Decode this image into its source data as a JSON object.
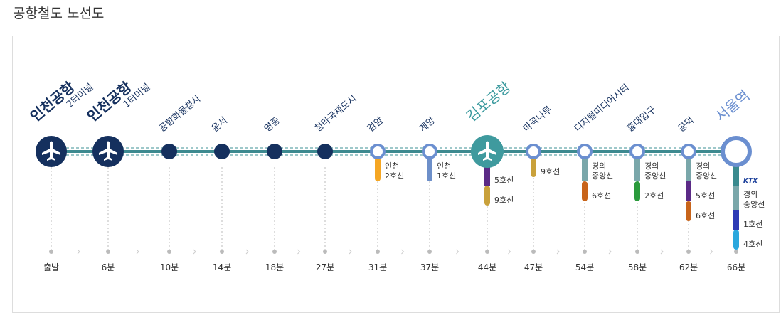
{
  "header": {
    "title": "공항철도 노선도"
  },
  "stations": [
    {
      "name": "인천공항",
      "sub": "2터미널",
      "time": "출발",
      "marker": "airport",
      "transfers": []
    },
    {
      "name": "인천공항",
      "sub": "1터미널",
      "time": "6분",
      "marker": "airport",
      "transfers": []
    },
    {
      "name": "공항화물청사",
      "time": "10분",
      "marker": "stop",
      "transfers": []
    },
    {
      "name": "운서",
      "time": "14분",
      "marker": "stop",
      "transfers": []
    },
    {
      "name": "영종",
      "time": "18분",
      "marker": "stop",
      "transfers": []
    },
    {
      "name": "청라국제도시",
      "time": "27분",
      "marker": "stop",
      "transfers": []
    },
    {
      "name": "검암",
      "time": "31분",
      "marker": "transfer",
      "transfers": [
        {
          "label": [
            "인천",
            "2호선"
          ],
          "color": "#f5a623"
        }
      ]
    },
    {
      "name": "계양",
      "time": "37분",
      "marker": "transfer",
      "transfers": [
        {
          "label": [
            "인천",
            "1호선"
          ],
          "color": "#6d8fc9"
        }
      ]
    },
    {
      "name": "김포공항",
      "time": "44분",
      "marker": "hub",
      "transfers": [
        {
          "label": [
            "5호선"
          ],
          "color": "#5b2a86"
        },
        {
          "label": [
            "9호선"
          ],
          "color": "#c9a13b"
        }
      ]
    },
    {
      "name": "마곡나루",
      "time": "47분",
      "marker": "transfer",
      "transfers": [
        {
          "label": [
            "9호선"
          ],
          "color": "#c9a13b"
        }
      ]
    },
    {
      "name": "디지털미디어시티",
      "time": "54분",
      "marker": "transfer",
      "transfers": [
        {
          "label": [
            "경의",
            "중앙선"
          ],
          "color": "#7aa7aa"
        },
        {
          "label": [
            "6호선"
          ],
          "color": "#c8641a"
        }
      ]
    },
    {
      "name": "홍대입구",
      "time": "58분",
      "marker": "transfer",
      "transfers": [
        {
          "label": [
            "경의",
            "중앙선"
          ],
          "color": "#7aa7aa"
        },
        {
          "label": [
            "2호선"
          ],
          "color": "#2a9a3c"
        }
      ]
    },
    {
      "name": "공덕",
      "time": "62분",
      "marker": "transfer",
      "transfers": [
        {
          "label": [
            "경의",
            "중앙선"
          ],
          "color": "#7aa7aa"
        },
        {
          "label": [
            "5호선"
          ],
          "color": "#5b2a86"
        },
        {
          "label": [
            "6호선"
          ],
          "color": "#c8641a"
        }
      ]
    },
    {
      "name": "서울역",
      "time": "66분",
      "marker": "terminal",
      "transfers": [
        {
          "label": [
            "KTX"
          ],
          "color": "#3a8a8e"
        },
        {
          "label": [
            "경의",
            "중앙선"
          ],
          "color": "#7aa7aa"
        },
        {
          "label": [
            "1호선"
          ],
          "color": "#2d3bb5"
        },
        {
          "label": [
            "4호선"
          ],
          "color": "#2aa7dd"
        }
      ]
    }
  ]
}
